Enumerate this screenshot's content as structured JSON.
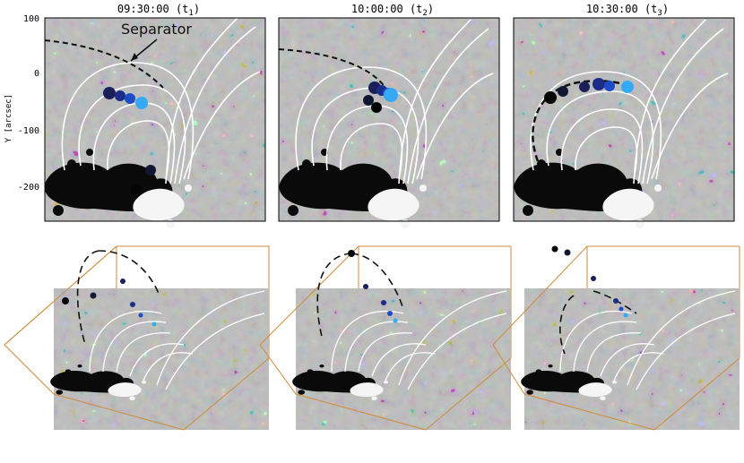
{
  "panels": [
    {
      "time": "09:30:00",
      "sub": "1"
    },
    {
      "time": "10:00:00",
      "sub": "2"
    },
    {
      "time": "10:30:00",
      "sub": "3"
    }
  ],
  "annotation": "Separator",
  "y_axis": {
    "label": "Y [arcsec]",
    "ticks": [
      "100",
      "0",
      "-100",
      "-200"
    ]
  }
}
